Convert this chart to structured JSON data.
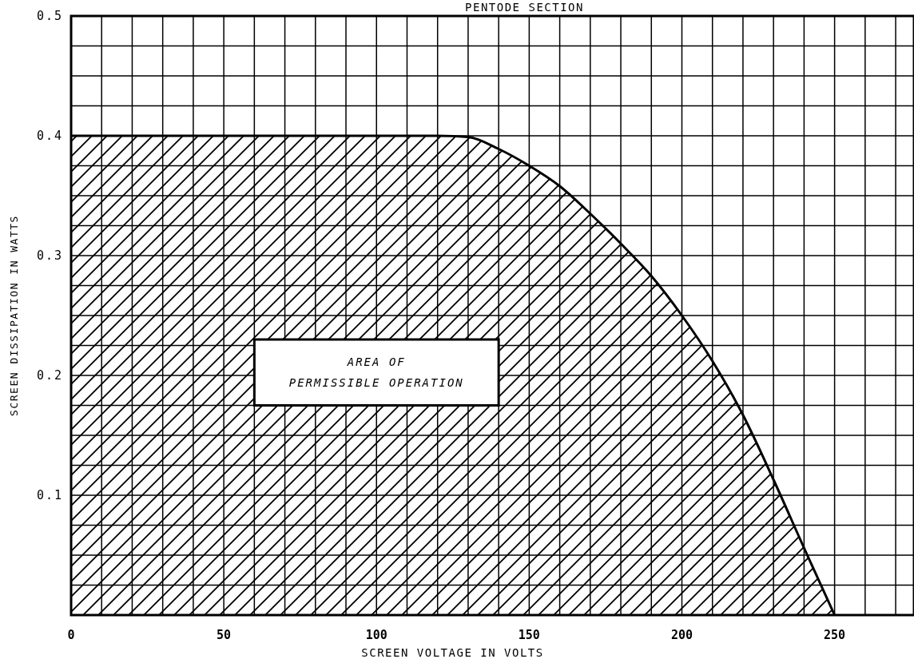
{
  "chart_data": {
    "type": "area",
    "title": "PENTODE SECTION",
    "xlabel": "SCREEN VOLTAGE IN VOLTS",
    "ylabel": "SCREEN DISSIPATION IN WATTS",
    "x": [
      0,
      120,
      130,
      140,
      150,
      160,
      170,
      180,
      190,
      200,
      210,
      220,
      230,
      240,
      250
    ],
    "series": [
      {
        "color": "#000000",
        "values": [
          0.4,
          0.4,
          0.399,
          0.389,
          0.375,
          0.358,
          0.335,
          0.31,
          0.283,
          0.25,
          0.212,
          0.167,
          0.113,
          0.056,
          0
        ]
      }
    ],
    "xlim": [
      0,
      276
    ],
    "xticks": [
      0,
      {
        "value": 10,
        "label": null
      },
      {
        "value": 20,
        "label": null
      },
      {
        "value": 30,
        "label": null
      },
      {
        "value": 40,
        "label": null
      },
      50,
      {
        "value": 60,
        "label": null
      },
      {
        "value": 70,
        "label": null
      },
      {
        "value": 80,
        "label": null
      },
      {
        "value": 90,
        "label": null
      },
      100,
      {
        "value": 110,
        "label": null
      },
      {
        "value": 120,
        "label": null
      },
      {
        "value": 130,
        "label": null
      },
      {
        "value": 140,
        "label": null
      },
      150,
      {
        "value": 160,
        "label": null
      },
      {
        "value": 170,
        "label": null
      },
      {
        "value": 180,
        "label": null
      },
      {
        "value": 190,
        "label": null
      },
      200,
      {
        "value": 210,
        "label": null
      },
      {
        "value": 220,
        "label": null
      },
      {
        "value": 230,
        "label": null
      },
      {
        "value": 240,
        "label": null
      },
      250,
      {
        "value": 260,
        "label": null
      },
      {
        "value": 270,
        "label": null
      }
    ],
    "ylim": [
      0,
      0.5
    ],
    "yticks": [
      {
        "value": 0.025,
        "label": null
      },
      {
        "value": 0.05,
        "label": null
      },
      {
        "value": 0.075,
        "label": null
      },
      0.1,
      {
        "value": 0.125,
        "label": null
      },
      {
        "value": 0.15,
        "label": null
      },
      {
        "value": 0.175,
        "label": null
      },
      0.2,
      {
        "value": 0.225,
        "label": null
      },
      {
        "value": 0.25,
        "label": null
      },
      {
        "value": 0.275,
        "label": null
      },
      0.3,
      {
        "value": 0.325,
        "label": null
      },
      {
        "value": 0.35,
        "label": null
      },
      {
        "value": 0.375,
        "label": null
      },
      0.4,
      {
        "value": 0.425,
        "label": null
      },
      {
        "value": 0.45,
        "label": null
      },
      {
        "value": 0.475,
        "label": null
      },
      0.5
    ],
    "grid": true,
    "annotations": [
      "AREA OF\nPERMISSIBLE OPERATION"
    ]
  }
}
